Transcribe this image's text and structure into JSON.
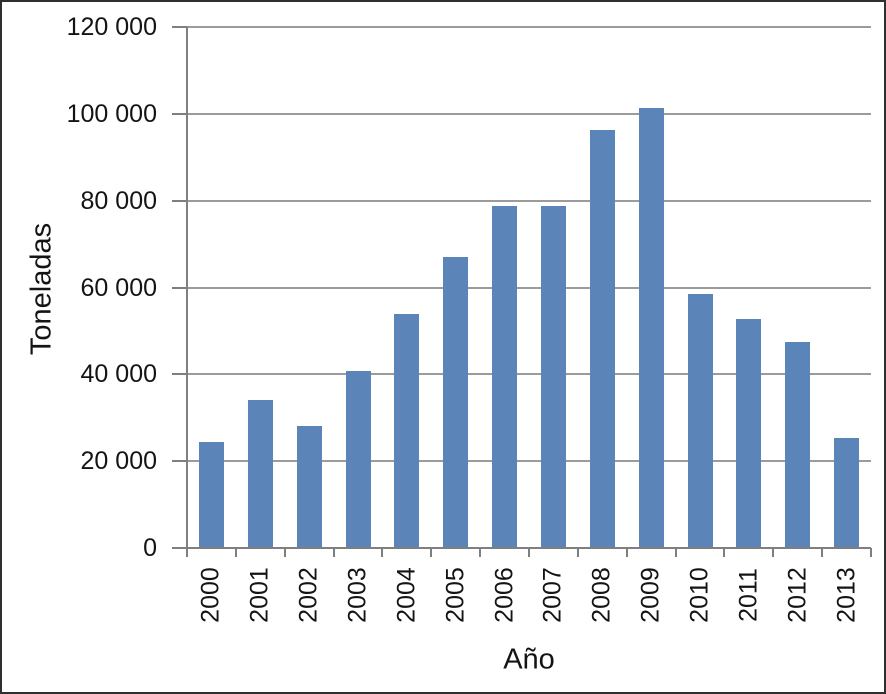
{
  "chart_data": {
    "type": "bar",
    "title": "",
    "categories": [
      "2000",
      "2001",
      "2002",
      "2003",
      "2004",
      "2005",
      "2006",
      "2007",
      "2008",
      "2009",
      "2010",
      "2011",
      "2012",
      "2013"
    ],
    "values": [
      24500,
      34000,
      28200,
      40700,
      54000,
      67000,
      78800,
      78800,
      96300,
      101400,
      58500,
      52700,
      47400,
      25300
    ],
    "xlabel": "Año",
    "ylabel": "Toneladas",
    "ylim": [
      0,
      120000
    ],
    "ytick_values": [
      0,
      20000,
      40000,
      60000,
      80000,
      100000,
      120000
    ],
    "ytick_labels": [
      "0",
      "20 000",
      "40 000",
      "60 000",
      "80 000",
      "100 000",
      "120 000"
    ],
    "legend": null,
    "grid": "horizontal",
    "bar_color": "#5b84b8",
    "grid_color": "#9b9b9b",
    "axis_color": "#7f7f7f",
    "text_color": "#141414"
  }
}
